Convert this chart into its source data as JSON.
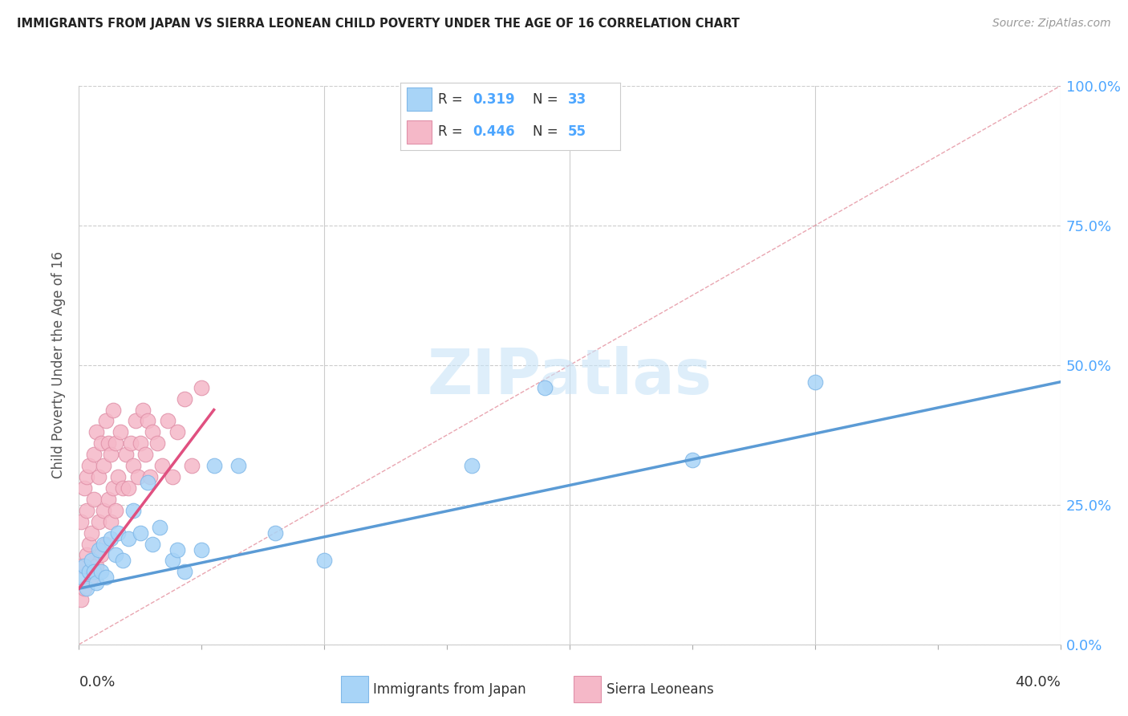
{
  "title": "IMMIGRANTS FROM JAPAN VS SIERRA LEONEAN CHILD POVERTY UNDER THE AGE OF 16 CORRELATION CHART",
  "source": "Source: ZipAtlas.com",
  "ylabel": "Child Poverty Under the Age of 16",
  "ytick_labels": [
    "0.0%",
    "25.0%",
    "50.0%",
    "75.0%",
    "100.0%"
  ],
  "ytick_values": [
    0.0,
    0.25,
    0.5,
    0.75,
    1.0
  ],
  "xlim": [
    0.0,
    0.4
  ],
  "ylim": [
    0.0,
    1.0
  ],
  "color_blue": "#a8d4f7",
  "color_pink": "#f5b8c8",
  "line_blue": "#5b9bd5",
  "line_pink": "#e05080",
  "line_diag_color": "#f0a0b0",
  "watermark_color": "#c8e4f8",
  "japan_x": [
    0.001,
    0.002,
    0.003,
    0.004,
    0.005,
    0.006,
    0.007,
    0.008,
    0.009,
    0.01,
    0.011,
    0.013,
    0.015,
    0.016,
    0.018,
    0.02,
    0.022,
    0.025,
    0.028,
    0.03,
    0.033,
    0.038,
    0.04,
    0.043,
    0.05,
    0.055,
    0.065,
    0.08,
    0.1,
    0.16,
    0.19,
    0.25,
    0.3
  ],
  "japan_y": [
    0.12,
    0.14,
    0.1,
    0.13,
    0.15,
    0.13,
    0.11,
    0.17,
    0.13,
    0.18,
    0.12,
    0.19,
    0.16,
    0.2,
    0.15,
    0.19,
    0.24,
    0.2,
    0.29,
    0.18,
    0.21,
    0.15,
    0.17,
    0.13,
    0.17,
    0.32,
    0.32,
    0.2,
    0.15,
    0.32,
    0.46,
    0.33,
    0.47
  ],
  "sierra_x": [
    0.001,
    0.001,
    0.001,
    0.002,
    0.002,
    0.003,
    0.003,
    0.003,
    0.004,
    0.004,
    0.005,
    0.005,
    0.006,
    0.006,
    0.007,
    0.007,
    0.008,
    0.008,
    0.009,
    0.009,
    0.01,
    0.01,
    0.011,
    0.011,
    0.012,
    0.012,
    0.013,
    0.013,
    0.014,
    0.014,
    0.015,
    0.015,
    0.016,
    0.017,
    0.018,
    0.019,
    0.02,
    0.021,
    0.022,
    0.023,
    0.024,
    0.025,
    0.026,
    0.027,
    0.028,
    0.029,
    0.03,
    0.032,
    0.034,
    0.036,
    0.038,
    0.04,
    0.043,
    0.046,
    0.05
  ],
  "sierra_y": [
    0.08,
    0.14,
    0.22,
    0.1,
    0.28,
    0.16,
    0.24,
    0.3,
    0.18,
    0.32,
    0.12,
    0.2,
    0.26,
    0.34,
    0.14,
    0.38,
    0.22,
    0.3,
    0.16,
    0.36,
    0.24,
    0.32,
    0.18,
    0.4,
    0.26,
    0.36,
    0.22,
    0.34,
    0.28,
    0.42,
    0.24,
    0.36,
    0.3,
    0.38,
    0.28,
    0.34,
    0.28,
    0.36,
    0.32,
    0.4,
    0.3,
    0.36,
    0.42,
    0.34,
    0.4,
    0.3,
    0.38,
    0.36,
    0.32,
    0.4,
    0.3,
    0.38,
    0.44,
    0.32,
    0.46
  ],
  "blue_line_x": [
    0.0,
    0.4
  ],
  "blue_line_y": [
    0.1,
    0.47
  ],
  "pink_line_x": [
    0.0,
    0.055
  ],
  "pink_line_y": [
    0.1,
    0.42
  ],
  "diag_line_x": [
    0.0,
    0.4
  ],
  "diag_line_y": [
    0.0,
    1.0
  ]
}
